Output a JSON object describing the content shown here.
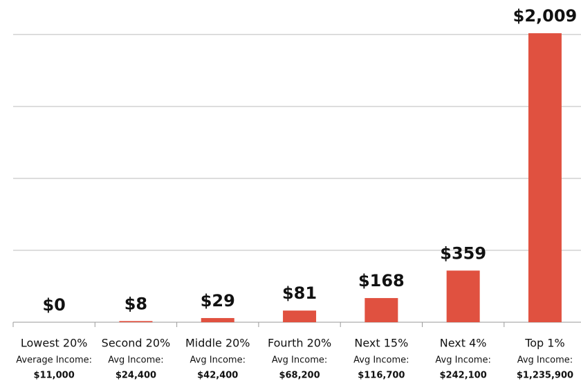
{
  "chart_data": {
    "type": "bar",
    "categories": [
      "Lowest 20%",
      "Second 20%",
      "Middle 20%",
      "Fourth 20%",
      "Next 15%",
      "Next 4%",
      "Top 1%"
    ],
    "category_sublabels": [
      "Average Income:",
      "Avg Income:",
      "Avg Income:",
      "Avg Income:",
      "Avg Income:",
      "Avg Income:",
      "Avg Income:"
    ],
    "category_incomes": [
      "$11,000",
      "$24,400",
      "$42,400",
      "$68,200",
      "$116,700",
      "$242,100",
      "$1,235,900"
    ],
    "values": [
      0,
      8,
      29,
      81,
      168,
      359,
      2009
    ],
    "value_labels": [
      "$0",
      "$8",
      "$29",
      "$81",
      "$168",
      "$359",
      "$2,009"
    ],
    "color": "#e05140",
    "ylim": [
      0,
      2240
    ],
    "yticks": [
      0,
      500,
      1000,
      1500,
      2000
    ],
    "grid": true
  }
}
